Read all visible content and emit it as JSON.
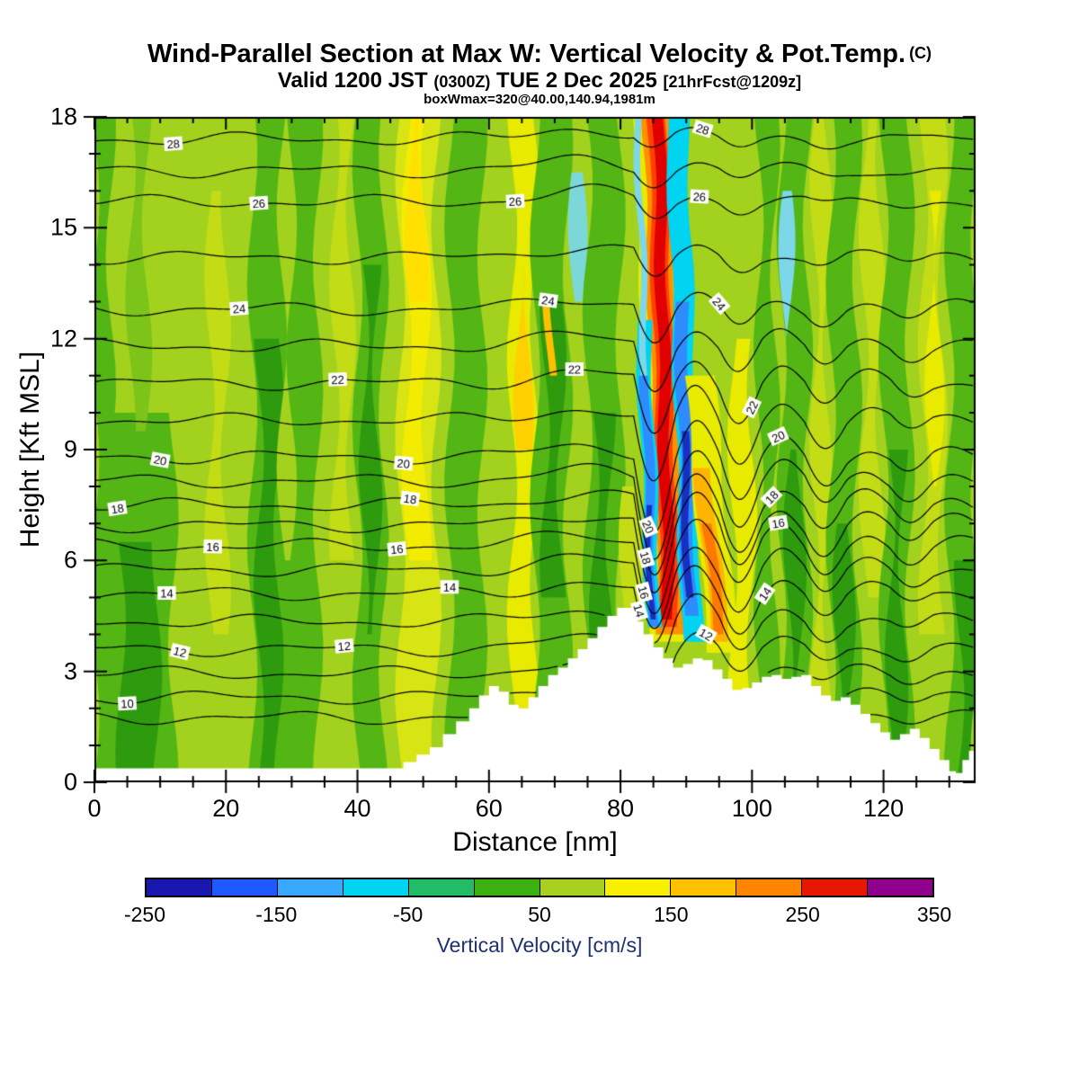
{
  "title": {
    "main": "Wind-Parallel Section at Max W: Vertical Velocity & Pot.Temp.",
    "suffix": "(C)"
  },
  "subtitle": {
    "p1": "Valid 1200 JST",
    "zulu": "(0300Z)",
    "p2": "TUE 2 Dec 2025",
    "fcst": "[21hrFcst@1209z]"
  },
  "annotation": "boxWmax=320@40.00,140.94,1981m",
  "chart_data": {
    "type": "heatmap",
    "title": "Wind-Parallel Section at Max W: Vertical Velocity & Pot.Temp. (C)",
    "subtitle": "Valid 1200 JST (0300Z) TUE 2 Dec 2025 [21hrFcst@1209z]",
    "annotation": "boxWmax=320@40.00,140.94,1981m",
    "axes": {
      "xlabel": "Distance [nm]",
      "ylabel": "Height [Kft MSL]",
      "xlim": [
        0,
        134
      ],
      "ylim": [
        0,
        18
      ],
      "xticks": [
        0,
        20,
        40,
        60,
        80,
        100,
        120
      ],
      "yticks": [
        0,
        3,
        6,
        9,
        12,
        15,
        18
      ],
      "x_minor_step": 5,
      "y_minor_step": 1
    },
    "colorbar": {
      "label": "Vertical Velocity [cm/s]",
      "min": -250,
      "max": 350,
      "tick_values": [
        -250,
        -150,
        -50,
        50,
        150,
        250,
        350
      ],
      "colors": [
        "#1818b0",
        "#2058ff",
        "#38a8ff",
        "#00d4f0",
        "#22bb66",
        "#3cb010",
        "#a8d020",
        "#f8f000",
        "#ffc000",
        "#ff8400",
        "#e81800",
        "#90008c"
      ]
    },
    "field": {
      "base_color": "#a2d21e",
      "bands": [
        {
          "x0": 0,
          "x1": 2.5,
          "y0": 0,
          "y1": 18,
          "c": "#54b614"
        },
        {
          "x0": 0,
          "x1": 12,
          "y0": 0,
          "y1": 10,
          "c": "#54b614"
        },
        {
          "x0": 4,
          "x1": 9.5,
          "y0": 0,
          "y1": 6.5,
          "c": "#2e9a0e"
        },
        {
          "x0": 5.5,
          "x1": 8,
          "y0": 9.5,
          "y1": 18,
          "c": "#7cc41a"
        },
        {
          "x0": 17.5,
          "x1": 20,
          "y0": 4,
          "y1": 16,
          "c": "#c4dc16"
        },
        {
          "x0": 24,
          "x1": 34,
          "y0": 0,
          "y1": 18,
          "c": "#54b614"
        },
        {
          "x0": 25,
          "x1": 28,
          "y0": 0,
          "y1": 12,
          "c": "#2e9a0e"
        },
        {
          "x0": 28.5,
          "x1": 30,
          "y0": 6,
          "y1": 18,
          "c": "#a2d21e"
        },
        {
          "x0": 36.5,
          "x1": 39,
          "y0": 6,
          "y1": 18,
          "c": "#c4dc16"
        },
        {
          "x0": 40,
          "x1": 44,
          "y0": 0,
          "y1": 18,
          "c": "#54b614"
        },
        {
          "x0": 41,
          "x1": 43,
          "y0": 4,
          "y1": 14,
          "c": "#2e9a0e"
        },
        {
          "x0": 46.5,
          "x1": 52,
          "y0": 0,
          "y1": 18,
          "c": "#d8e414"
        },
        {
          "x0": 47.5,
          "x1": 50.5,
          "y0": 6,
          "y1": 18,
          "c": "#f4ec00"
        },
        {
          "x0": 48,
          "x1": 50,
          "y0": 13,
          "y1": 18,
          "c": "#ffe000"
        },
        {
          "x0": 54,
          "x1": 59,
          "y0": 0,
          "y1": 18,
          "c": "#54b614"
        },
        {
          "x0": 63.5,
          "x1": 67,
          "y0": 2,
          "y1": 18,
          "c": "#e8ea00"
        },
        {
          "x0": 64.5,
          "x1": 66,
          "y0": 9,
          "y1": 14,
          "c": "#ffd000"
        },
        {
          "x0": 67,
          "x1": 72,
          "y0": 0,
          "y1": 18,
          "c": "#54b614"
        },
        {
          "x0": 68.5,
          "x1": 71,
          "y0": 5,
          "y1": 13,
          "c": "#2e9a0e"
        },
        {
          "x0": 72.8,
          "x1": 74.2,
          "y0": 13,
          "y1": 16.5,
          "c": "#7cd8d8"
        },
        {
          "x0": 75,
          "x1": 80,
          "y0": 0,
          "y1": 18,
          "c": "#54b614"
        },
        {
          "x0": 76,
          "x1": 78.5,
          "y0": 3,
          "y1": 10,
          "c": "#2e9a0e"
        },
        {
          "x0": 80.5,
          "x1": 82.5,
          "y0": 0,
          "y1": 8,
          "c": "#c4dc16"
        },
        {
          "x0": 97,
          "x1": 100,
          "y0": 0,
          "y1": 12,
          "c": "#e8ea00"
        },
        {
          "x0": 101,
          "x1": 103.5,
          "y0": 0,
          "y1": 18,
          "c": "#54b614"
        },
        {
          "x0": 104.5,
          "x1": 108.5,
          "y0": 0,
          "y1": 18,
          "c": "#54b614"
        },
        {
          "x0": 105.5,
          "x1": 107.5,
          "y0": 2,
          "y1": 9,
          "c": "#2e9a0e"
        },
        {
          "x0": 104.8,
          "x1": 105.8,
          "y0": 12,
          "y1": 16,
          "c": "#7cd8e8"
        },
        {
          "x0": 109.5,
          "x1": 111.5,
          "y0": 0,
          "y1": 18,
          "c": "#c4dc16"
        },
        {
          "x0": 112,
          "x1": 116,
          "y0": 0,
          "y1": 18,
          "c": "#54b614"
        },
        {
          "x0": 113,
          "x1": 115,
          "y0": 0,
          "y1": 7,
          "c": "#2e9a0e"
        },
        {
          "x0": 117,
          "x1": 119.5,
          "y0": 5,
          "y1": 18,
          "c": "#c4dc16"
        },
        {
          "x0": 120,
          "x1": 124,
          "y0": 0,
          "y1": 18,
          "c": "#54b614"
        },
        {
          "x0": 121,
          "x1": 123,
          "y0": 0,
          "y1": 9,
          "c": "#2e9a0e"
        },
        {
          "x0": 126,
          "x1": 129,
          "y0": 4,
          "y1": 18,
          "c": "#c4dc16"
        },
        {
          "x0": 127,
          "x1": 128.5,
          "y0": 8,
          "y1": 16,
          "c": "#e8ea00"
        },
        {
          "x0": 130,
          "x1": 134,
          "y0": 0,
          "y1": 18,
          "c": "#54b614"
        },
        {
          "x0": 131.5,
          "x1": 134,
          "y0": 0,
          "y1": 6,
          "c": "#2e9a0e"
        }
      ],
      "wave_stripes": [
        {
          "xb": 88,
          "xt": 85.5,
          "y0": 3.8,
          "y1": 18,
          "w": 6.5,
          "c": "#e8ea00"
        },
        {
          "xb": 87.8,
          "xt": 85.5,
          "y0": 4.0,
          "y1": 18,
          "w": 4.2,
          "c": "#ff9000"
        },
        {
          "xb": 87.5,
          "xt": 85.6,
          "y0": 4.2,
          "y1": 18,
          "w": 2.8,
          "c": "#ff4000"
        },
        {
          "xb": 87.3,
          "xt": 85.8,
          "y0": 4.4,
          "y1": 18,
          "w": 1.7,
          "c": "#e00000"
        },
        {
          "xb": 90.9,
          "xt": 88.6,
          "y0": 3.8,
          "y1": 18,
          "w": 3.2,
          "c": "#00d4f0"
        },
        {
          "xb": 90.6,
          "xt": 89.2,
          "y0": 4.5,
          "y1": 13,
          "w": 2.0,
          "c": "#2e8cff"
        },
        {
          "xb": 90.4,
          "xt": 89.6,
          "y0": 5.0,
          "y1": 9.5,
          "w": 1.1,
          "c": "#1830c0"
        },
        {
          "xb": 85.1,
          "xt": 83.5,
          "y0": 4.2,
          "y1": 12.5,
          "w": 2.2,
          "c": "#00d4f0"
        },
        {
          "xb": 84.9,
          "xt": 83.8,
          "y0": 4.2,
          "y1": 11,
          "w": 1.4,
          "c": "#2e8cff"
        },
        {
          "xb": 84.8,
          "xt": 84.3,
          "y0": 4.4,
          "y1": 7.5,
          "w": 0.8,
          "c": "#1830c0"
        },
        {
          "xb": 83.8,
          "xt": 82.6,
          "y0": 11,
          "y1": 18,
          "w": 1.0,
          "c": "#7cd8e8"
        },
        {
          "xb": 95.5,
          "xt": 92,
          "y0": 3.5,
          "y1": 11,
          "w": 4.5,
          "c": "#e8ea00"
        },
        {
          "xb": 95.2,
          "xt": 92.5,
          "y0": 3.8,
          "y1": 8.5,
          "w": 2.6,
          "c": "#ffb400"
        },
        {
          "xb": 95,
          "xt": 93.2,
          "y0": 4,
          "y1": 7,
          "w": 1.5,
          "c": "#ff7800"
        },
        {
          "xb": 69.5,
          "xt": 69,
          "y0": 11,
          "y1": 13,
          "w": 1.1,
          "c": "#ffc000"
        }
      ]
    },
    "terrain": [
      [
        0,
        0.38
      ],
      [
        46,
        0.38
      ],
      [
        47,
        0.55
      ],
      [
        49,
        0.75
      ],
      [
        51,
        0.95
      ],
      [
        53,
        1.3
      ],
      [
        55,
        1.65
      ],
      [
        57,
        2.0
      ],
      [
        58.5,
        2.35
      ],
      [
        60,
        2.6
      ],
      [
        61.5,
        2.45
      ],
      [
        63,
        2.1
      ],
      [
        64.5,
        2.0
      ],
      [
        66,
        2.3
      ],
      [
        67.5,
        2.6
      ],
      [
        69,
        2.9
      ],
      [
        70.5,
        3.1
      ],
      [
        72,
        3.35
      ],
      [
        73.5,
        3.6
      ],
      [
        75,
        3.9
      ],
      [
        76.5,
        4.2
      ],
      [
        78,
        4.5
      ],
      [
        79.5,
        4.72
      ],
      [
        81.5,
        4.72
      ],
      [
        82.5,
        4.35
      ],
      [
        83.5,
        4.0
      ],
      [
        85,
        3.65
      ],
      [
        86.5,
        3.35
      ],
      [
        88,
        3.1
      ],
      [
        89.5,
        3.2
      ],
      [
        91,
        3.35
      ],
      [
        92.5,
        3.3
      ],
      [
        94,
        3.05
      ],
      [
        95.5,
        2.8
      ],
      [
        97,
        2.5
      ],
      [
        98.5,
        2.55
      ],
      [
        100,
        2.7
      ],
      [
        101.5,
        2.85
      ],
      [
        103,
        2.9
      ],
      [
        104.5,
        2.8
      ],
      [
        106,
        2.85
      ],
      [
        107.5,
        2.9
      ],
      [
        109,
        2.6
      ],
      [
        110.5,
        2.35
      ],
      [
        112,
        2.2
      ],
      [
        113.5,
        2.3
      ],
      [
        115,
        2.1
      ],
      [
        116.5,
        1.85
      ],
      [
        118,
        1.6
      ],
      [
        119.5,
        1.35
      ],
      [
        121,
        1.15
      ],
      [
        122.5,
        1.3
      ],
      [
        124,
        1.45
      ],
      [
        125.5,
        1.2
      ],
      [
        127,
        0.9
      ],
      [
        128.5,
        0.6
      ],
      [
        130,
        0.3
      ],
      [
        131,
        0.25
      ],
      [
        132,
        0.6
      ],
      [
        133,
        0.85
      ],
      [
        134,
        0.6
      ]
    ],
    "isotherms": {
      "unit": "C",
      "contour_interval": 1,
      "labeled_interval": 2,
      "levels": [
        [
          9,
          1.75
        ],
        [
          10,
          2.3
        ],
        [
          11,
          2.95
        ],
        [
          12,
          3.6
        ],
        [
          13,
          4.35
        ],
        [
          14,
          5.1
        ],
        [
          15,
          5.75
        ],
        [
          16,
          6.4
        ],
        [
          17,
          6.95
        ],
        [
          18,
          7.5
        ],
        [
          19,
          8.15
        ],
        [
          20,
          8.8
        ],
        [
          21,
          9.8
        ],
        [
          22,
          10.8
        ],
        [
          23,
          11.8
        ],
        [
          24,
          12.8
        ],
        [
          25,
          14.2
        ],
        [
          26,
          15.7
        ],
        [
          27,
          16.55
        ],
        [
          28,
          17.4
        ]
      ],
      "labels": [
        {
          "t": 10,
          "x": [
            5
          ]
        },
        {
          "t": 12,
          "x": [
            13,
            38,
            93
          ]
        },
        {
          "t": 14,
          "x": [
            11,
            54,
            82.8,
            102
          ]
        },
        {
          "t": 16,
          "x": [
            18,
            46,
            83.5,
            104
          ]
        },
        {
          "t": 18,
          "x": [
            3.5,
            48,
            83.8,
            103
          ]
        },
        {
          "t": 20,
          "x": [
            10,
            47,
            84.2,
            104
          ]
        },
        {
          "t": 22,
          "x": [
            37,
            73,
            100
          ]
        },
        {
          "t": 24,
          "x": [
            22,
            69,
            95
          ]
        },
        {
          "t": 26,
          "x": [
            25,
            64,
            92
          ]
        },
        {
          "t": 28,
          "x": [
            12,
            92.5
          ]
        }
      ]
    }
  }
}
